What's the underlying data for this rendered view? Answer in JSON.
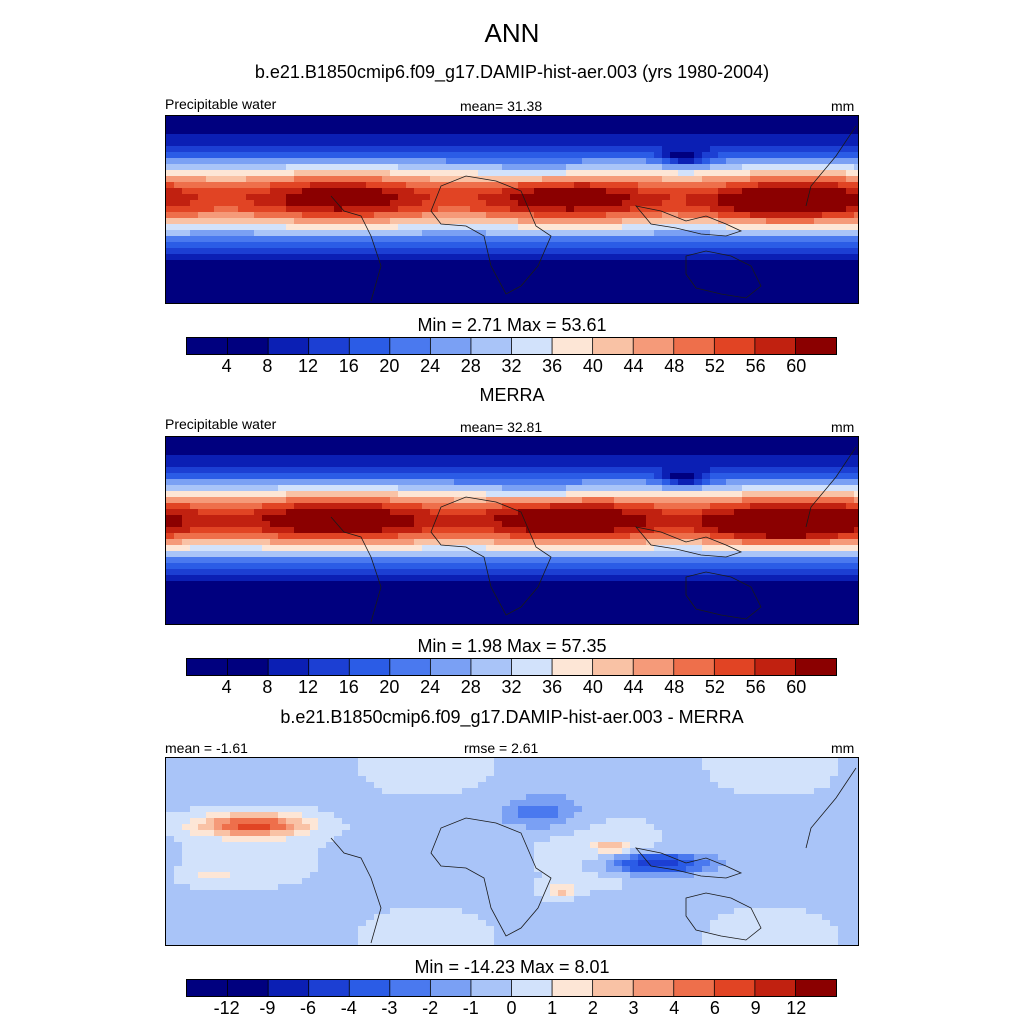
{
  "figure": {
    "title": "ANN"
  },
  "panels": [
    {
      "id": "model",
      "subtitle": "b.e21.B1850cmip6.f09_g17.DAMIP-hist-aer.003 (yrs 1980-2004)",
      "left_label": "Precipitable water",
      "center_label": "mean=  31.38",
      "units": "mm",
      "minmax": "Min =   2.71 Max =  53.61"
    },
    {
      "id": "obs",
      "subtitle": "MERRA",
      "left_label": "Precipitable water",
      "center_label": "mean=  32.81",
      "units": "mm",
      "minmax": "Min =   1.98 Max =  57.35"
    },
    {
      "id": "diff",
      "subtitle": "b.e21.B1850cmip6.f09_g17.DAMIP-hist-aer.003 - MERRA",
      "left_label": "mean =  -1.61",
      "center_label": "rmse =   2.61",
      "units": "mm",
      "minmax": "Min = -14.23 Max =   8.01"
    }
  ],
  "colorbars": {
    "field_ticks": [
      "4",
      "8",
      "12",
      "16",
      "20",
      "24",
      "28",
      "32",
      "36",
      "40",
      "44",
      "48",
      "52",
      "56",
      "60"
    ],
    "diff_ticks": [
      "-12",
      "-9",
      "-6",
      "-4",
      "-3",
      "-2",
      "-1",
      "0",
      "1",
      "2",
      "3",
      "4",
      "6",
      "9",
      "12"
    ],
    "colors": [
      "#00007f",
      "#0b1fb4",
      "#1c3fd3",
      "#2b5ce6",
      "#4a79ef",
      "#7aa0f4",
      "#a9c4f8",
      "#d2e2fb",
      "#fde6d6",
      "#f9c2a5",
      "#f59a79",
      "#ee6f4b",
      "#e14424",
      "#c12110",
      "#8b0000"
    ]
  },
  "chart_data": [
    {
      "type": "heatmap",
      "title": "b.e21.B1850cmip6.f09_g17.DAMIP-hist-aer.003 (yrs 1980-2004)",
      "variable": "Precipitable water",
      "units": "mm",
      "mean": 31.38,
      "min": 2.71,
      "max": 53.61,
      "levels": [
        4,
        8,
        12,
        16,
        20,
        24,
        28,
        32,
        36,
        40,
        44,
        48,
        52,
        56,
        60
      ]
    },
    {
      "type": "heatmap",
      "title": "MERRA",
      "variable": "Precipitable water",
      "units": "mm",
      "mean": 32.81,
      "min": 1.98,
      "max": 57.35,
      "levels": [
        4,
        8,
        12,
        16,
        20,
        24,
        28,
        32,
        36,
        40,
        44,
        48,
        52,
        56,
        60
      ]
    },
    {
      "type": "heatmap",
      "title": "b.e21.B1850cmip6.f09_g17.DAMIP-hist-aer.003 - MERRA",
      "units": "mm",
      "mean": -1.61,
      "rmse": 2.61,
      "min": -14.23,
      "max": 8.01,
      "levels": [
        -12,
        -9,
        -6,
        -4,
        -3,
        -2,
        -1,
        0,
        1,
        2,
        3,
        4,
        6,
        9,
        12
      ]
    }
  ]
}
